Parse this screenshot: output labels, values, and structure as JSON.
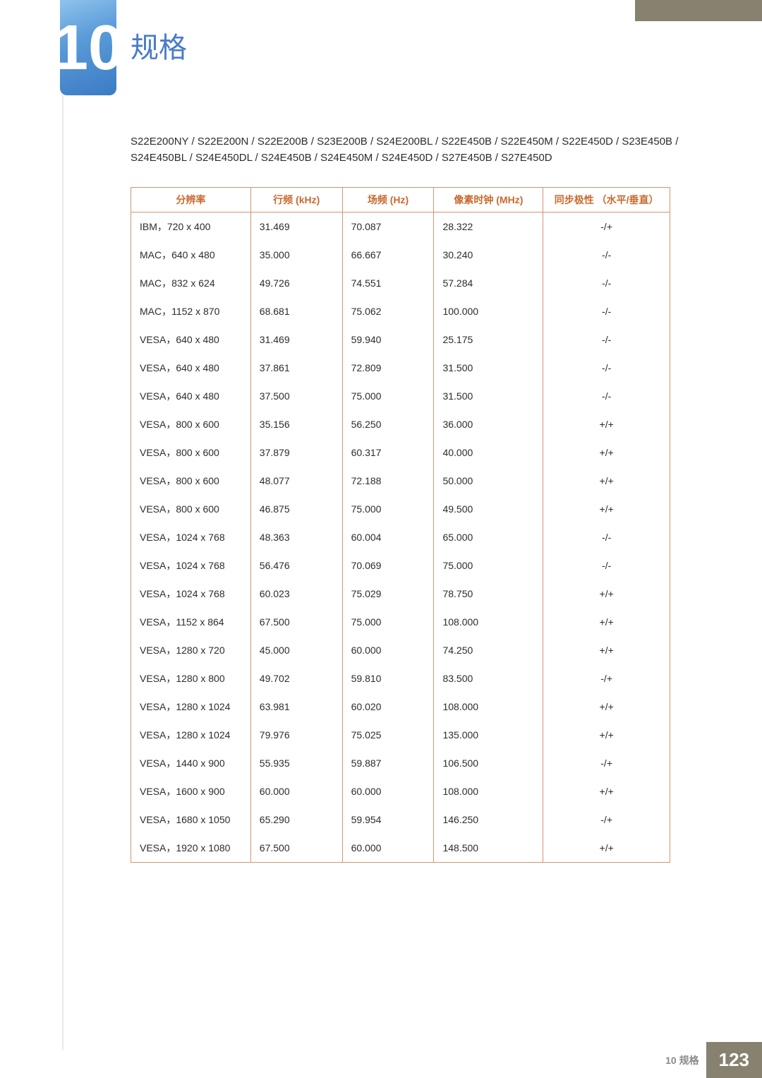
{
  "chapter": {
    "number": "10",
    "title": "规格"
  },
  "models_text": "S22E200NY / S22E200N / S22E200B / S23E200B / S24E200BL / S22E450B / S22E450M / S22E450D / S23E450B / S24E450BL / S24E450DL / S24E450B / S24E450M / S24E450D / S27E450B / S27E450D",
  "table": {
    "columns": [
      "分辨率",
      "行频 (kHz)",
      "场频 (Hz)",
      "像素时钟 (MHz)",
      "同步极性 （水平/垂直）"
    ],
    "rows": [
      [
        "IBM，720 x 400",
        "31.469",
        "70.087",
        "28.322",
        "-/+"
      ],
      [
        "MAC，640 x 480",
        "35.000",
        "66.667",
        "30.240",
        "-/-"
      ],
      [
        "MAC，832 x 624",
        "49.726",
        "74.551",
        "57.284",
        "-/-"
      ],
      [
        "MAC，1152 x 870",
        "68.681",
        "75.062",
        "100.000",
        "-/-"
      ],
      [
        "VESA，640 x 480",
        "31.469",
        "59.940",
        "25.175",
        "-/-"
      ],
      [
        "VESA，640 x 480",
        "37.861",
        "72.809",
        "31.500",
        "-/-"
      ],
      [
        "VESA，640 x 480",
        "37.500",
        "75.000",
        "31.500",
        "-/-"
      ],
      [
        "VESA，800 x 600",
        "35.156",
        "56.250",
        "36.000",
        "+/+"
      ],
      [
        "VESA，800 x 600",
        "37.879",
        "60.317",
        "40.000",
        "+/+"
      ],
      [
        "VESA，800 x 600",
        "48.077",
        "72.188",
        "50.000",
        "+/+"
      ],
      [
        "VESA，800 x 600",
        "46.875",
        "75.000",
        "49.500",
        "+/+"
      ],
      [
        "VESA，1024 x 768",
        "48.363",
        "60.004",
        "65.000",
        "-/-"
      ],
      [
        "VESA，1024 x 768",
        "56.476",
        "70.069",
        "75.000",
        "-/-"
      ],
      [
        "VESA，1024 x 768",
        "60.023",
        "75.029",
        "78.750",
        "+/+"
      ],
      [
        "VESA，1152 x 864",
        "67.500",
        "75.000",
        "108.000",
        "+/+"
      ],
      [
        "VESA，1280 x 720",
        "45.000",
        "60.000",
        "74.250",
        "+/+"
      ],
      [
        "VESA，1280 x 800",
        "49.702",
        "59.810",
        "83.500",
        "-/+"
      ],
      [
        "VESA，1280 x 1024",
        "63.981",
        "60.020",
        "108.000",
        "+/+"
      ],
      [
        "VESA，1280 x 1024",
        "79.976",
        "75.025",
        "135.000",
        "+/+"
      ],
      [
        "VESA，1440 x 900",
        "55.935",
        "59.887",
        "106.500",
        "-/+"
      ],
      [
        "VESA，1600 x 900",
        "60.000",
        "60.000",
        "108.000",
        "+/+"
      ],
      [
        "VESA，1680 x 1050",
        "65.290",
        "59.954",
        "146.250",
        "-/+"
      ],
      [
        "VESA，1920 x 1080",
        "67.500",
        "60.000",
        "148.500",
        "+/+"
      ]
    ]
  },
  "footer": {
    "label": "10 规格",
    "page": "123"
  }
}
